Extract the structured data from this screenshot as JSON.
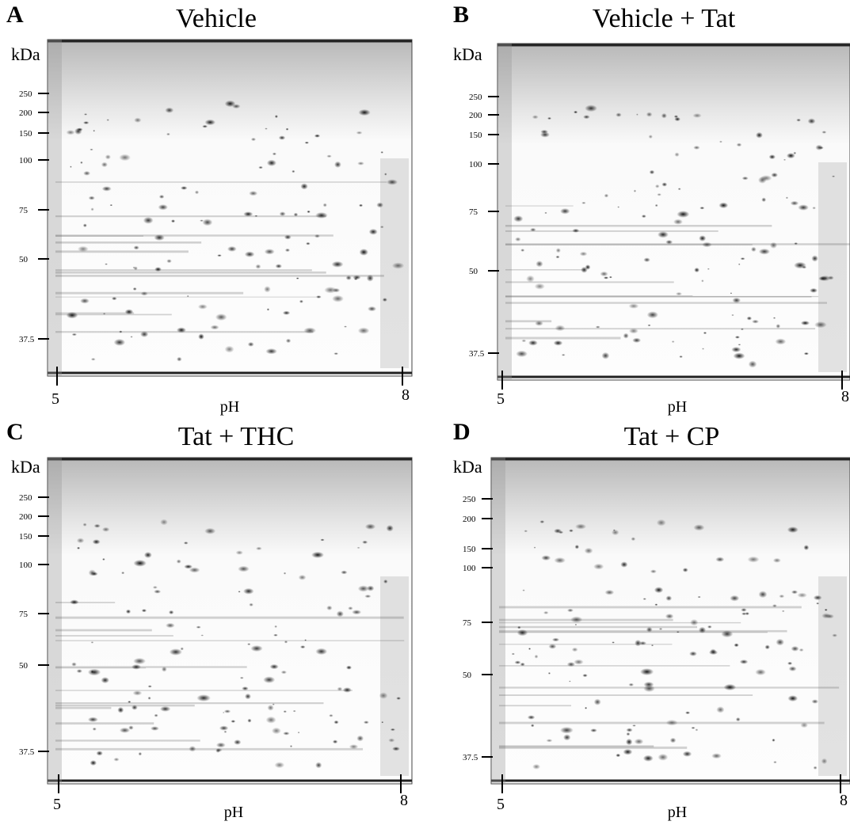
{
  "panels": [
    {
      "letter": "A",
      "title": "Vehicle",
      "y_unit": "kDa",
      "mw_labels": [
        250,
        200,
        150,
        100,
        75,
        50,
        37.5
      ],
      "ph_labels": [
        5,
        8
      ],
      "x_label": "pH"
    },
    {
      "letter": "B",
      "title": "Vehicle + Tat",
      "y_unit": "kDa",
      "mw_labels": [
        250,
        200,
        150,
        100,
        75,
        50,
        37.5
      ],
      "ph_labels": [
        5,
        8
      ],
      "x_label": "pH"
    },
    {
      "letter": "C",
      "title": "Tat + THC",
      "y_unit": "kDa",
      "mw_labels": [
        250,
        200,
        150,
        100,
        75,
        50,
        37.5
      ],
      "ph_labels": [
        5,
        8
      ],
      "x_label": "pH"
    },
    {
      "letter": "D",
      "title": "Tat + CP",
      "y_unit": "kDa",
      "mw_labels": [
        250,
        200,
        150,
        100,
        75,
        50,
        37.5
      ],
      "ph_labels": [
        5,
        8
      ],
      "x_label": "pH"
    }
  ]
}
